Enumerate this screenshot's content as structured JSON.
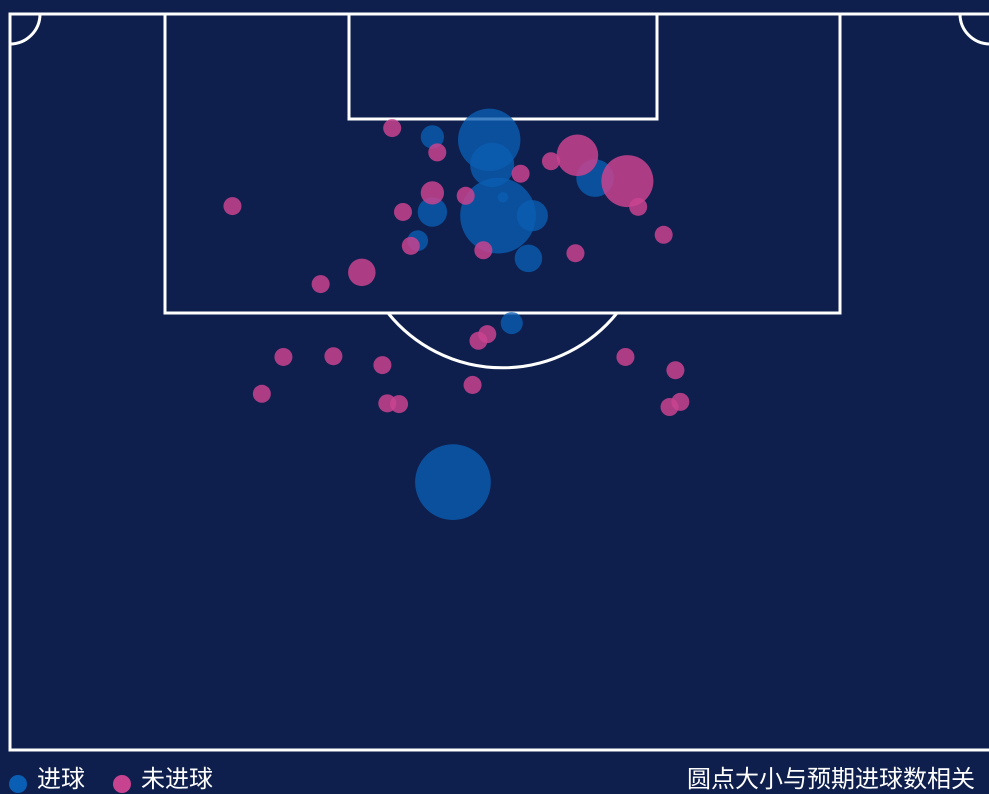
{
  "chart_data": {
    "type": "scatter",
    "note": "圆点大小与预期进球数相关",
    "xlim": [
      0,
      100
    ],
    "ylim": [
      0,
      100
    ],
    "series": [
      {
        "name": "进球",
        "color": "#0a5fb4",
        "x": [
          48.9,
          49.2,
          43.1,
          49.8,
          43.1,
          53.3,
          41.6,
          52.9,
          59.7,
          51.2,
          45.2,
          50.3
        ],
        "y": [
          17.1,
          20.5,
          16.7,
          27.4,
          26.9,
          27.4,
          30.8,
          33.2,
          22.3,
          42.0,
          63.6,
          24.9
        ],
        "sizes": [
          0.36,
          0.18,
          0.05,
          0.53,
          0.08,
          0.09,
          0.04,
          0.07,
          0.13,
          0.045,
          0.53,
          0.01
        ]
      },
      {
        "name": "未进球",
        "color": "#c8438f",
        "x": [
          39.0,
          43.6,
          22.7,
          43.1,
          40.1,
          46.5,
          52.1,
          55.2,
          57.9,
          63.0,
          64.1,
          66.7,
          57.7,
          48.3,
          40.9,
          35.9,
          31.7,
          48.7,
          47.8,
          27.9,
          33.0,
          38.0,
          62.8,
          67.9,
          25.7,
          38.5,
          39.7,
          47.2,
          68.4,
          67.3
        ],
        "y": [
          15.5,
          18.8,
          26.1,
          24.3,
          26.9,
          24.7,
          21.7,
          20.0,
          19.2,
          22.7,
          26.2,
          30.0,
          32.5,
          32.1,
          31.5,
          35.1,
          36.7,
          43.5,
          44.4,
          46.6,
          46.5,
          47.7,
          46.6,
          48.4,
          51.6,
          52.9,
          53.0,
          50.4,
          52.7,
          53.4
        ],
        "sizes": [
          0.03,
          0.03,
          0.03,
          0.05,
          0.03,
          0.03,
          0.03,
          0.03,
          0.16,
          0.25,
          0.03,
          0.03,
          0.03,
          0.03,
          0.03,
          0.07,
          0.03,
          0.03,
          0.03,
          0.03,
          0.03,
          0.03,
          0.03,
          0.03,
          0.03,
          0.03,
          0.03,
          0.03,
          0.03,
          0.03
        ]
      }
    ]
  }
}
